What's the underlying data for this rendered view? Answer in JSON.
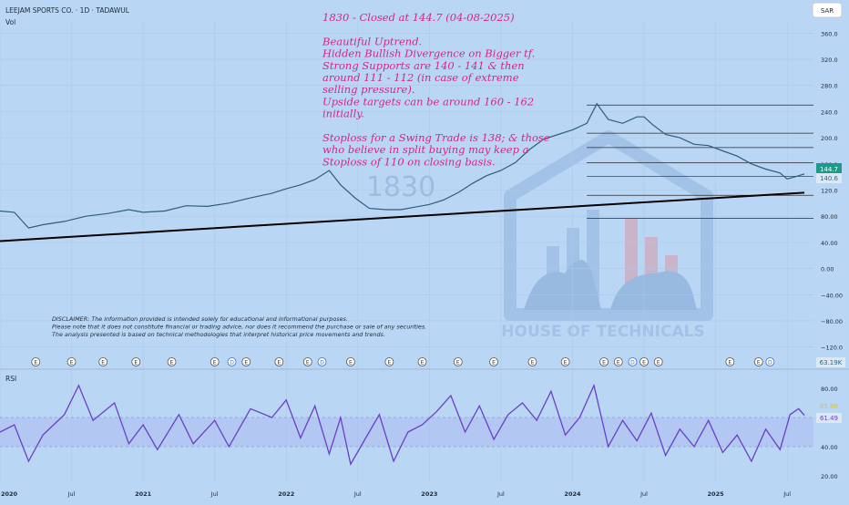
{
  "header": {
    "symbol_line": "LEEJAM SPORTS CO. · 1D · TADAWUL",
    "volume_label": "Vol",
    "currency": "SAR",
    "rsi_label": "RSI"
  },
  "annotation": {
    "lines": [
      "1830 - Closed at 144.7 (04-08-2025)",
      "",
      "Beautiful Uptrend.",
      "Hidden Bullish Divergence on Bigger tf.",
      "Strong Supports are 140 - 141 & then",
      "around 111 - 112 (in case of extreme",
      "selling pressure).",
      "Upside targets can be around 160 - 162",
      "initially.",
      "",
      "Stoploss for a Swing Trade is 138; & those",
      "who believe in split buying may keep a",
      "Stoploss of 110 on closing basis."
    ],
    "color": "#d6238e"
  },
  "disclaimer": {
    "lines": [
      "DISCLAIMER: The information provided is intended solely for educational and informational purposes.",
      "Please note that it does not constitute financial or trading advice, nor does it recommend the purchase or sale of any securities.",
      "The analysis presented is based on technical methodologies that interpret historical price movements and trends."
    ]
  },
  "watermark": {
    "symbol": "1830",
    "brand": "HOUSE OF TECHNICALS"
  },
  "price_badges": {
    "last": "144.7",
    "prev": "140.6",
    "volume": "63.19K",
    "rsi_a": "65.86",
    "rsi_b": "61.49"
  },
  "chart_data": {
    "type": "line",
    "price_axis": {
      "ticks": [
        -120,
        -80,
        -40,
        0,
        40,
        80,
        120,
        160,
        200,
        240,
        280,
        320,
        360
      ],
      "tick_labels": [
        "−120.0",
        "−80.00",
        "−40.00",
        "0.00",
        "40.00",
        "80.00",
        "120.0",
        "160.0",
        "200.0",
        "240.0",
        "280.0",
        "320.0",
        "360.0"
      ],
      "range": [
        -140,
        380
      ]
    },
    "rsi_axis": {
      "ticks": [
        20,
        40,
        60,
        80
      ],
      "tick_labels": [
        "20.00",
        "40.00",
        "60.00",
        "80.00"
      ],
      "range": [
        15,
        90
      ],
      "band": [
        40,
        60
      ]
    },
    "time_axis": {
      "start": 2020.0,
      "end": 2025.62,
      "ticks": [
        {
          "t": 2020.0,
          "label": "2020",
          "bold": true
        },
        {
          "t": 2020.5,
          "label": "Jul",
          "bold": false
        },
        {
          "t": 2021.0,
          "label": "2021",
          "bold": true
        },
        {
          "t": 2021.5,
          "label": "Jul",
          "bold": false
        },
        {
          "t": 2022.0,
          "label": "2022",
          "bold": true
        },
        {
          "t": 2022.5,
          "label": "Jul",
          "bold": false
        },
        {
          "t": 2023.0,
          "label": "2023",
          "bold": true
        },
        {
          "t": 2023.5,
          "label": "Jul",
          "bold": false
        },
        {
          "t": 2024.0,
          "label": "2024",
          "bold": true
        },
        {
          "t": 2024.5,
          "label": "Jul",
          "bold": false
        },
        {
          "t": 2025.0,
          "label": "2025",
          "bold": true
        },
        {
          "t": 2025.5,
          "label": "Jul",
          "bold": false
        }
      ]
    },
    "price_series": [
      [
        2020.0,
        88
      ],
      [
        2020.1,
        86
      ],
      [
        2020.2,
        62
      ],
      [
        2020.3,
        67
      ],
      [
        2020.45,
        72
      ],
      [
        2020.6,
        80
      ],
      [
        2020.75,
        84
      ],
      [
        2020.9,
        90
      ],
      [
        2021.0,
        86
      ],
      [
        2021.15,
        88
      ],
      [
        2021.3,
        96
      ],
      [
        2021.45,
        95
      ],
      [
        2021.6,
        100
      ],
      [
        2021.75,
        108
      ],
      [
        2021.9,
        115
      ],
      [
        2022.0,
        122
      ],
      [
        2022.1,
        128
      ],
      [
        2022.2,
        136
      ],
      [
        2022.3,
        150
      ],
      [
        2022.38,
        128
      ],
      [
        2022.48,
        108
      ],
      [
        2022.58,
        92
      ],
      [
        2022.7,
        90
      ],
      [
        2022.8,
        90
      ],
      [
        2022.9,
        94
      ],
      [
        2023.0,
        98
      ],
      [
        2023.1,
        105
      ],
      [
        2023.2,
        116
      ],
      [
        2023.3,
        130
      ],
      [
        2023.4,
        142
      ],
      [
        2023.5,
        150
      ],
      [
        2023.6,
        162
      ],
      [
        2023.7,
        182
      ],
      [
        2023.8,
        198
      ],
      [
        2023.9,
        205
      ],
      [
        2024.0,
        212
      ],
      [
        2024.1,
        222
      ],
      [
        2024.17,
        252
      ],
      [
        2024.25,
        228
      ],
      [
        2024.35,
        222
      ],
      [
        2024.45,
        232
      ],
      [
        2024.5,
        232
      ],
      [
        2024.56,
        220
      ],
      [
        2024.65,
        205
      ],
      [
        2024.75,
        200
      ],
      [
        2024.85,
        190
      ],
      [
        2024.95,
        188
      ],
      [
        2025.05,
        180
      ],
      [
        2025.15,
        172
      ],
      [
        2025.25,
        160
      ],
      [
        2025.35,
        152
      ],
      [
        2025.45,
        146
      ],
      [
        2025.5,
        137
      ],
      [
        2025.55,
        140
      ],
      [
        2025.62,
        144.7
      ]
    ],
    "support_trendline": [
      [
        2020.0,
        42
      ],
      [
        2025.62,
        116
      ]
    ],
    "horizontal_levels": [
      {
        "from": 2024.1,
        "value": 250
      },
      {
        "from": 2024.1,
        "value": 207
      },
      {
        "from": 2024.1,
        "value": 185
      },
      {
        "from": 2024.1,
        "value": 162
      },
      {
        "from": 2024.1,
        "value": 141
      },
      {
        "from": 2024.1,
        "value": 112
      },
      {
        "from": 2024.1,
        "value": 77
      }
    ],
    "rsi_series": [
      [
        2020.0,
        50
      ],
      [
        2020.1,
        55
      ],
      [
        2020.2,
        30
      ],
      [
        2020.3,
        48
      ],
      [
        2020.45,
        62
      ],
      [
        2020.55,
        82
      ],
      [
        2020.65,
        58
      ],
      [
        2020.8,
        70
      ],
      [
        2020.9,
        42
      ],
      [
        2021.0,
        55
      ],
      [
        2021.1,
        38
      ],
      [
        2021.25,
        62
      ],
      [
        2021.35,
        42
      ],
      [
        2021.5,
        58
      ],
      [
        2021.6,
        40
      ],
      [
        2021.75,
        66
      ],
      [
        2021.9,
        60
      ],
      [
        2022.0,
        72
      ],
      [
        2022.1,
        46
      ],
      [
        2022.2,
        68
      ],
      [
        2022.3,
        35
      ],
      [
        2022.38,
        60
      ],
      [
        2022.45,
        28
      ],
      [
        2022.55,
        45
      ],
      [
        2022.65,
        62
      ],
      [
        2022.75,
        30
      ],
      [
        2022.85,
        50
      ],
      [
        2022.95,
        55
      ],
      [
        2023.05,
        64
      ],
      [
        2023.15,
        75
      ],
      [
        2023.25,
        50
      ],
      [
        2023.35,
        68
      ],
      [
        2023.45,
        45
      ],
      [
        2023.55,
        62
      ],
      [
        2023.65,
        70
      ],
      [
        2023.75,
        58
      ],
      [
        2023.85,
        78
      ],
      [
        2023.95,
        48
      ],
      [
        2024.05,
        60
      ],
      [
        2024.15,
        82
      ],
      [
        2024.25,
        40
      ],
      [
        2024.35,
        58
      ],
      [
        2024.45,
        44
      ],
      [
        2024.55,
        63
      ],
      [
        2024.65,
        34
      ],
      [
        2024.75,
        52
      ],
      [
        2024.85,
        40
      ],
      [
        2024.95,
        58
      ],
      [
        2025.05,
        36
      ],
      [
        2025.15,
        48
      ],
      [
        2025.25,
        30
      ],
      [
        2025.35,
        52
      ],
      [
        2025.45,
        38
      ],
      [
        2025.52,
        62
      ],
      [
        2025.58,
        66
      ],
      [
        2025.62,
        61.49
      ]
    ],
    "earnings_markers": [
      {
        "t": 2020.25,
        "type": "E"
      },
      {
        "t": 2020.5,
        "type": "E"
      },
      {
        "t": 2020.72,
        "type": "E"
      },
      {
        "t": 2020.95,
        "type": "E"
      },
      {
        "t": 2021.2,
        "type": "E"
      },
      {
        "t": 2021.5,
        "type": "E"
      },
      {
        "t": 2021.62,
        "type": "D"
      },
      {
        "t": 2021.72,
        "type": "E"
      },
      {
        "t": 2021.95,
        "type": "E"
      },
      {
        "t": 2022.15,
        "type": "E"
      },
      {
        "t": 2022.25,
        "type": "D"
      },
      {
        "t": 2022.45,
        "type": "E"
      },
      {
        "t": 2022.72,
        "type": "E"
      },
      {
        "t": 2022.95,
        "type": "E"
      },
      {
        "t": 2023.2,
        "type": "E"
      },
      {
        "t": 2023.45,
        "type": "E"
      },
      {
        "t": 2023.72,
        "type": "E"
      },
      {
        "t": 2023.95,
        "type": "E"
      },
      {
        "t": 2024.22,
        "type": "E"
      },
      {
        "t": 2024.32,
        "type": "E"
      },
      {
        "t": 2024.42,
        "type": "D"
      },
      {
        "t": 2024.5,
        "type": "E"
      },
      {
        "t": 2024.6,
        "type": "E"
      },
      {
        "t": 2025.1,
        "type": "E"
      },
      {
        "t": 2025.3,
        "type": "E"
      },
      {
        "t": 2025.38,
        "type": "D"
      }
    ]
  }
}
